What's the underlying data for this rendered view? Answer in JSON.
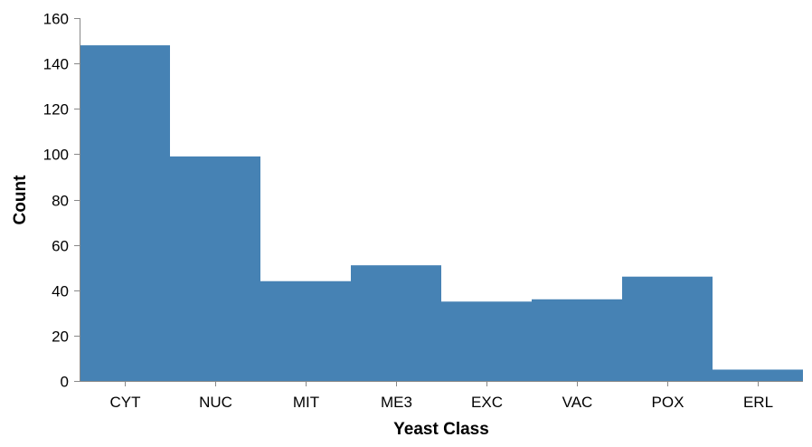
{
  "chart_data": {
    "type": "bar",
    "categories": [
      "CYT",
      "NUC",
      "MIT",
      "ME3",
      "EXC",
      "VAC",
      "POX",
      "ERL"
    ],
    "values": [
      148,
      99,
      44,
      51,
      35,
      36,
      46,
      5
    ],
    "xlabel": "Yeast Class",
    "ylabel": "Count",
    "ylim": [
      0,
      160
    ],
    "yticks": [
      0,
      20,
      40,
      60,
      80,
      100,
      120,
      140,
      160
    ],
    "grid": false,
    "bar_color": "#4682b4"
  }
}
